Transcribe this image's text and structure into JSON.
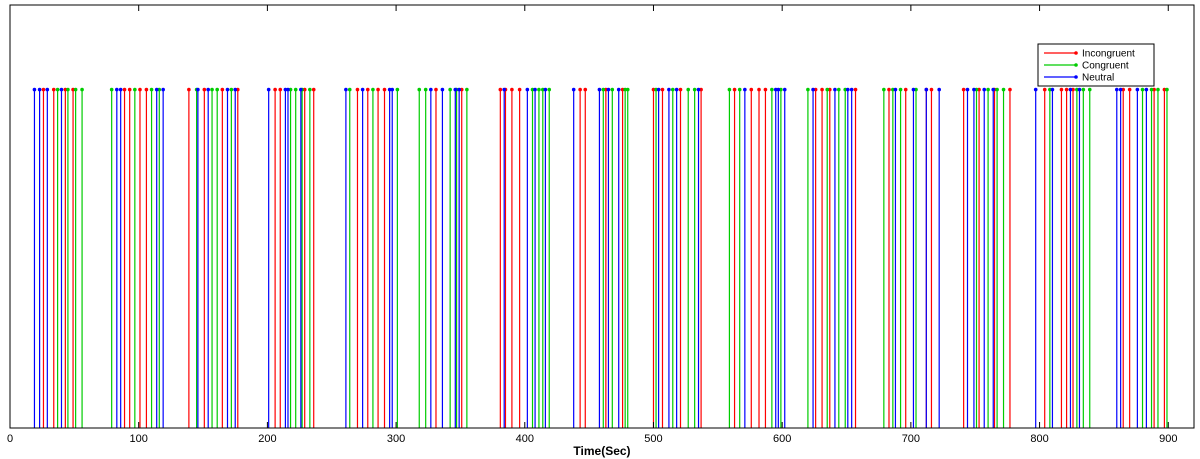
{
  "chart_data": {
    "type": "stem",
    "xlabel": "Time(Sec)",
    "ylabel": "",
    "xlim": [
      0,
      920
    ],
    "ylim": [
      0,
      1.25
    ],
    "xticks": [
      0,
      100,
      200,
      300,
      400,
      500,
      600,
      700,
      800,
      900
    ],
    "grid": false,
    "legend_position": "top-right",
    "series": [
      {
        "name": "Incongruent",
        "color": "#ff0000",
        "x": [
          26,
          34,
          43,
          49,
          89,
          93,
          101,
          106,
          139,
          151,
          165,
          177,
          206,
          210,
          229,
          236,
          270,
          278,
          286,
          291,
          331,
          351,
          381,
          385,
          390,
          396,
          443,
          447,
          463,
          476,
          500,
          507,
          521,
          537,
          563,
          576,
          582,
          587,
          626,
          631,
          637,
          657,
          683,
          696,
          712,
          716,
          741,
          753,
          765,
          777,
          804,
          817,
          821,
          826,
          865,
          870,
          889,
          897
        ],
        "y": 1
      },
      {
        "name": "Congruent",
        "color": "#00cc00",
        "x": [
          37,
          45,
          51,
          56,
          79,
          97,
          110,
          116,
          145,
          157,
          161,
          172,
          218,
          222,
          227,
          233,
          264,
          282,
          301,
          318,
          323,
          342,
          347,
          355,
          406,
          411,
          414,
          419,
          461,
          468,
          478,
          480,
          502,
          515,
          527,
          532,
          559,
          567,
          592,
          599,
          620,
          635,
          644,
          649,
          679,
          686,
          692,
          704,
          751,
          760,
          767,
          772,
          808,
          829,
          834,
          839,
          880,
          887,
          892,
          899
        ],
        "y": 1
      },
      {
        "name": "Neutral",
        "color": "#0000ff",
        "x": [
          19,
          23,
          29,
          40,
          83,
          86,
          114,
          119,
          146,
          154,
          169,
          175,
          201,
          214,
          216,
          226,
          261,
          274,
          295,
          297,
          327,
          336,
          346,
          349,
          384,
          402,
          408,
          416,
          438,
          458,
          465,
          473,
          504,
          512,
          518,
          535,
          571,
          595,
          597,
          602,
          624,
          641,
          651,
          654,
          688,
          702,
          712,
          722,
          744,
          749,
          757,
          764,
          797,
          810,
          824,
          831,
          860,
          863,
          876,
          883
        ],
        "y": 1
      }
    ]
  }
}
